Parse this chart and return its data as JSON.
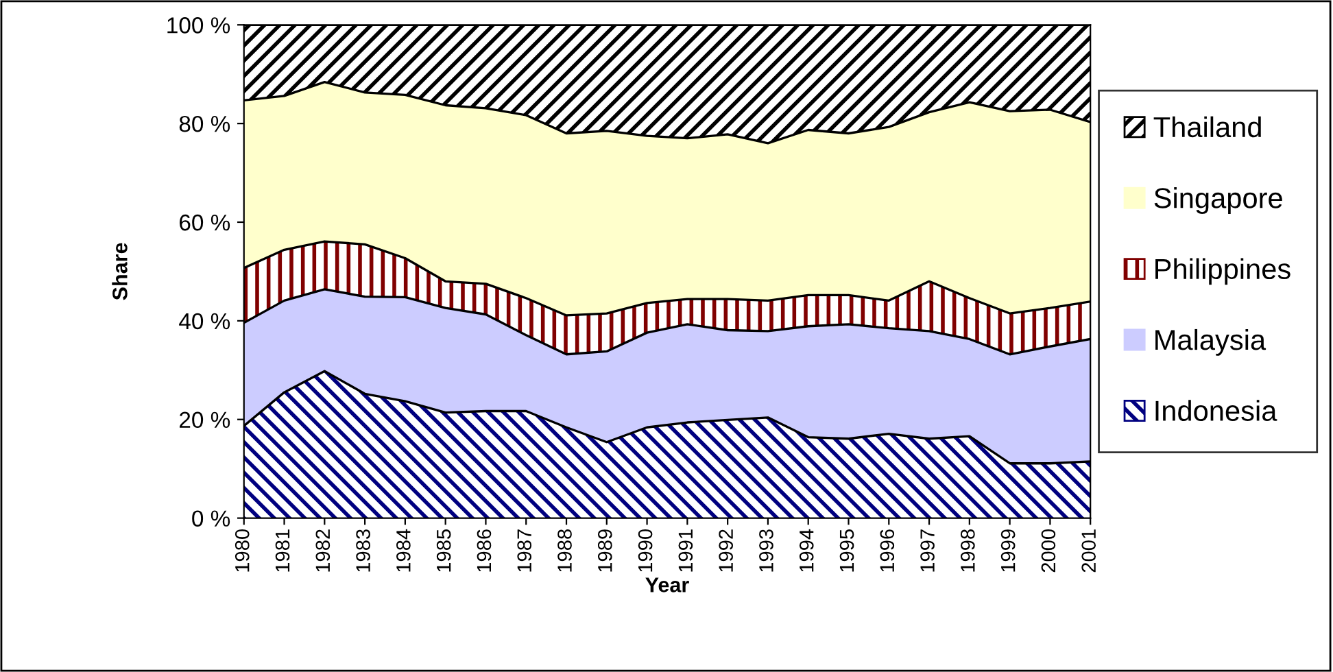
{
  "chart_data": {
    "type": "area",
    "stacked": true,
    "xlabel": "Year",
    "ylabel": "Share",
    "categories": [
      "1980",
      "1981",
      "1982",
      "1983",
      "1984",
      "1985",
      "1986",
      "1987",
      "1988",
      "1989",
      "1990",
      "1991",
      "1992",
      "1993",
      "1994",
      "1995",
      "1996",
      "1997",
      "1998",
      "1999",
      "2000",
      "2001"
    ],
    "series": [
      {
        "name": "Indonesia",
        "color": "#000080",
        "values": [
          18.7,
          25.5,
          29.8,
          25.2,
          23.7,
          21.4,
          21.7,
          21.7,
          18.4,
          15.4,
          18.4,
          19.4,
          19.9,
          20.4,
          16.4,
          16.1,
          17.1,
          16.1,
          16.6,
          11.1,
          11.1,
          11.5
        ]
      },
      {
        "name": "Malaysia",
        "color": "#ccccff",
        "values": [
          20.9,
          18.6,
          16.6,
          19.7,
          21.1,
          21.2,
          19.6,
          15.4,
          14.8,
          18.4,
          19.2,
          19.9,
          18.2,
          17.5,
          22.5,
          23.2,
          21.4,
          21.8,
          19.7,
          22.1,
          23.7,
          24.8
        ]
      },
      {
        "name": "Philippines",
        "color": "#800000",
        "values": [
          11.1,
          10.3,
          9.7,
          10.6,
          7.9,
          5.4,
          6.2,
          7.5,
          7.9,
          7.7,
          6.0,
          5.1,
          6.3,
          6.2,
          6.3,
          5.9,
          5.6,
          10.1,
          8.3,
          8.3,
          7.8,
          7.6
        ]
      },
      {
        "name": "Singapore",
        "color": "#ffffcc",
        "values": [
          34.0,
          31.2,
          32.3,
          30.8,
          33.1,
          35.7,
          35.6,
          37.1,
          36.9,
          37.0,
          33.9,
          32.6,
          33.4,
          31.9,
          33.5,
          32.8,
          35.2,
          34.3,
          39.7,
          41.0,
          40.2,
          36.4
        ]
      },
      {
        "name": "Thailand",
        "color": "#000000",
        "values": [
          15.3,
          14.4,
          11.6,
          13.7,
          14.2,
          16.3,
          16.9,
          18.3,
          22.0,
          21.5,
          22.5,
          23.0,
          22.2,
          24.0,
          21.3,
          22.0,
          20.7,
          17.7,
          15.7,
          17.5,
          17.2,
          19.7
        ]
      }
    ],
    "ylim": [
      0,
      100
    ],
    "yticks": [
      {
        "value": 0,
        "label": "0 %"
      },
      {
        "value": 20,
        "label": "20 %"
      },
      {
        "value": 40,
        "label": "40 %"
      },
      {
        "value": 60,
        "label": "60 %"
      },
      {
        "value": 80,
        "label": "80 %"
      },
      {
        "value": 100,
        "label": "100 %"
      }
    ],
    "grid": false,
    "legend": "right"
  }
}
